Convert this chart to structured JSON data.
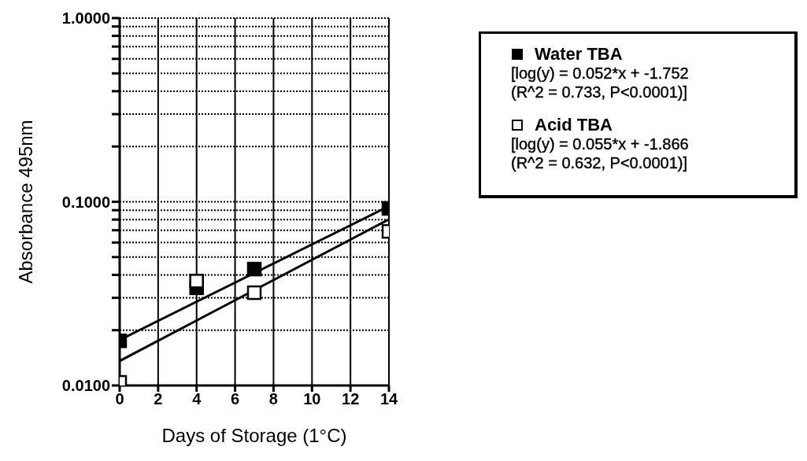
{
  "chart_data": {
    "type": "scatter",
    "xlabel": "Days of Storage (1°C)",
    "ylabel": "Absorbance 495nm",
    "log": "y",
    "xlim": [
      0,
      14
    ],
    "xticks": [
      0,
      2,
      4,
      6,
      8,
      10,
      12,
      14
    ],
    "ylim": [
      0.01,
      1
    ],
    "yticks": [
      {
        "value": 0.01,
        "label": "0.0100"
      },
      {
        "value": 0.02,
        "label": null
      },
      {
        "value": 0.03,
        "label": null
      },
      {
        "value": 0.04,
        "label": null
      },
      {
        "value": 0.05,
        "label": null
      },
      {
        "value": 0.06,
        "label": null
      },
      {
        "value": 0.07,
        "label": null
      },
      {
        "value": 0.08,
        "label": null
      },
      {
        "value": 0.09,
        "label": null
      },
      {
        "value": 0.1,
        "label": "0.1000"
      },
      {
        "value": 0.2,
        "label": null
      },
      {
        "value": 0.3,
        "label": null
      },
      {
        "value": 0.4,
        "label": null
      },
      {
        "value": 0.5,
        "label": null
      },
      {
        "value": 0.6,
        "label": null
      },
      {
        "value": 0.7,
        "label": null
      },
      {
        "value": 0.8,
        "label": null
      },
      {
        "value": 0.9,
        "label": null
      },
      {
        "value": 1,
        "label": "1.0000"
      }
    ],
    "grid": true,
    "legend": "right",
    "marker": "square",
    "series": [
      {
        "name": "Water TBA",
        "color": "#000000",
        "x": [
          0,
          4,
          7,
          14
        ],
        "values": [
          0.0175,
          0.034,
          0.043,
          0.092
        ]
      },
      {
        "name": "Acid TBA",
        "color": "#ffffff",
        "x": [
          0,
          4,
          7,
          14
        ],
        "values": [
          0.0104,
          0.037,
          0.032,
          0.069
        ]
      },
      {
        "type": "line",
        "color": "#000000",
        "marker": "none",
        "x": [
          0,
          14
        ],
        "values": [
          0.0177,
          0.0946
        ]
      },
      {
        "type": "line",
        "color": "#000000",
        "marker": "none",
        "x": [
          0,
          14
        ],
        "values": [
          0.0136,
          0.0802
        ]
      }
    ],
    "annotations": [
      "[log(y) = 0.052*x + -1.752\n(R^2 = 0.733, P<0.0001)]",
      "[log(y) = 0.055*x + -1.866\n(R^2 = 0.632, P<0.0001)]"
    ]
  }
}
